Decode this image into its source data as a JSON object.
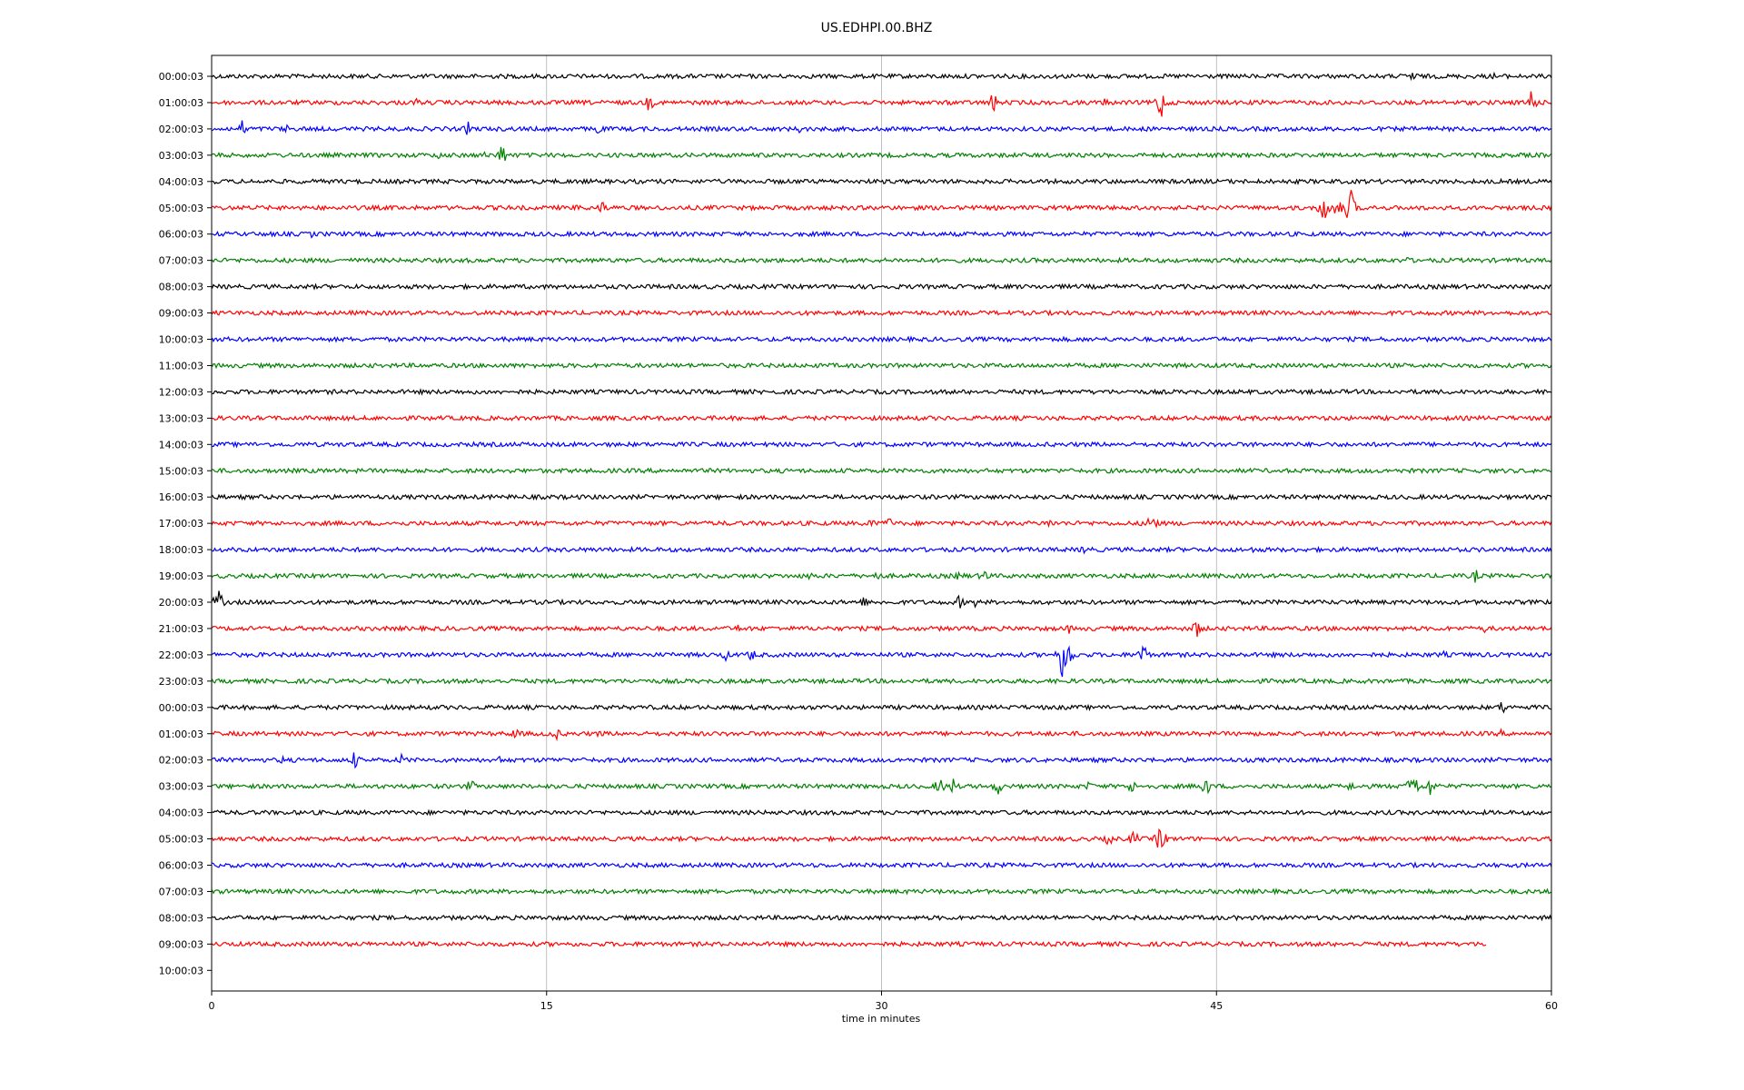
{
  "chart_data": {
    "type": "line",
    "title": "US.EDHPI.00.BHZ",
    "xlabel": "time in minutes",
    "ylabel": "",
    "xlim": [
      0,
      60
    ],
    "xticks": [
      "0",
      "15",
      "30",
      "45",
      "60"
    ],
    "grid": "vertical",
    "colors": [
      "#000000",
      "#ff0000",
      "#0000ff",
      "#008000"
    ],
    "rows": [
      {
        "label": "00:00:03",
        "end_minute": 60,
        "events": [
          {
            "t": 53.8,
            "a": 10
          },
          {
            "t": 57.5,
            "a": 6
          }
        ]
      },
      {
        "label": "01:00:03",
        "end_minute": 60,
        "events": [
          {
            "t": 9.2,
            "a": 6
          },
          {
            "t": 19.6,
            "a": 12
          },
          {
            "t": 33.5,
            "a": 5
          },
          {
            "t": 35.0,
            "a": 14
          },
          {
            "t": 40.0,
            "a": 6
          },
          {
            "t": 42.5,
            "a": 24
          },
          {
            "t": 47.0,
            "a": 6
          },
          {
            "t": 59.1,
            "a": 20
          }
        ]
      },
      {
        "label": "02:00:03",
        "end_minute": 60,
        "events": [
          {
            "t": 1.4,
            "a": 12
          },
          {
            "t": 3.3,
            "a": 7
          },
          {
            "t": 11.5,
            "a": 10
          },
          {
            "t": 17.3,
            "a": 9
          },
          {
            "t": 26.3,
            "a": 6
          }
        ]
      },
      {
        "label": "03:00:03",
        "end_minute": 60,
        "events": [
          {
            "t": 10.2,
            "a": 6
          },
          {
            "t": 12.3,
            "a": 6
          },
          {
            "t": 13.0,
            "a": 16
          }
        ]
      },
      {
        "label": "04:00:03",
        "end_minute": 60,
        "events": []
      },
      {
        "label": "05:00:03",
        "end_minute": 60,
        "events": [
          {
            "t": 16.5,
            "a": 9
          },
          {
            "t": 17.5,
            "a": 10
          },
          {
            "t": 49.8,
            "a": 22
          },
          {
            "t": 50.4,
            "a": 18
          },
          {
            "t": 51.0,
            "a": 28
          }
        ]
      },
      {
        "label": "06:00:03",
        "end_minute": 60,
        "events": [
          {
            "t": 4.5,
            "a": 5
          }
        ]
      },
      {
        "label": "07:00:03",
        "end_minute": 60,
        "events": [
          {
            "t": 53.5,
            "a": 6
          }
        ]
      },
      {
        "label": "08:00:03",
        "end_minute": 60,
        "events": []
      },
      {
        "label": "09:00:03",
        "end_minute": 60,
        "events": []
      },
      {
        "label": "10:00:03",
        "end_minute": 60,
        "events": []
      },
      {
        "label": "11:00:03",
        "end_minute": 60,
        "events": []
      },
      {
        "label": "12:00:03",
        "end_minute": 60,
        "events": []
      },
      {
        "label": "13:00:03",
        "end_minute": 60,
        "events": []
      },
      {
        "label": "14:00:03",
        "end_minute": 60,
        "events": []
      },
      {
        "label": "15:00:03",
        "end_minute": 60,
        "events": []
      },
      {
        "label": "16:00:03",
        "end_minute": 60,
        "events": []
      },
      {
        "label": "17:00:03",
        "end_minute": 60,
        "events": [
          {
            "t": 29.5,
            "a": 8
          },
          {
            "t": 30.3,
            "a": 10
          },
          {
            "t": 37.5,
            "a": 8
          },
          {
            "t": 42.1,
            "a": 18
          }
        ]
      },
      {
        "label": "18:00:03",
        "end_minute": 60,
        "events": [
          {
            "t": 39.1,
            "a": 8
          },
          {
            "t": 46.7,
            "a": 6
          }
        ]
      },
      {
        "label": "19:00:03",
        "end_minute": 60,
        "events": [
          {
            "t": 26.8,
            "a": 6
          },
          {
            "t": 29.8,
            "a": 8
          },
          {
            "t": 33.5,
            "a": 9
          },
          {
            "t": 34.6,
            "a": 12
          },
          {
            "t": 56.6,
            "a": 9
          }
        ]
      },
      {
        "label": "20:00:03",
        "end_minute": 60,
        "events": [
          {
            "t": 0.3,
            "a": 18
          },
          {
            "t": 29.2,
            "a": 8
          },
          {
            "t": 33.5,
            "a": 10
          },
          {
            "t": 34.2,
            "a": 6
          },
          {
            "t": 56.8,
            "a": 5
          }
        ]
      },
      {
        "label": "21:00:03",
        "end_minute": 60,
        "events": [
          {
            "t": 23.6,
            "a": 6
          },
          {
            "t": 38.4,
            "a": 6
          },
          {
            "t": 44.1,
            "a": 14
          },
          {
            "t": 57.0,
            "a": 5
          }
        ]
      },
      {
        "label": "22:00:03",
        "end_minute": 60,
        "events": [
          {
            "t": 23.0,
            "a": 8
          },
          {
            "t": 24.2,
            "a": 10
          },
          {
            "t": 38.1,
            "a": 30
          },
          {
            "t": 38.4,
            "a": 22
          },
          {
            "t": 41.7,
            "a": 18
          },
          {
            "t": 55.2,
            "a": 5
          }
        ]
      },
      {
        "label": "23:00:03",
        "end_minute": 60,
        "events": []
      },
      {
        "label": "00:00:03",
        "end_minute": 60,
        "events": [
          {
            "t": 57.8,
            "a": 10
          }
        ]
      },
      {
        "label": "01:00:03",
        "end_minute": 60,
        "events": [
          {
            "t": 13.6,
            "a": 9
          },
          {
            "t": 15.4,
            "a": 10
          },
          {
            "t": 17.4,
            "a": 6
          },
          {
            "t": 31.4,
            "a": 5
          },
          {
            "t": 57.7,
            "a": 6
          }
        ]
      },
      {
        "label": "02:00:03",
        "end_minute": 60,
        "events": [
          {
            "t": 3.2,
            "a": 6
          },
          {
            "t": 6.4,
            "a": 12
          },
          {
            "t": 8.5,
            "a": 8
          },
          {
            "t": 13.0,
            "a": 8
          }
        ]
      },
      {
        "label": "03:00:03",
        "end_minute": 60,
        "events": [
          {
            "t": 11.6,
            "a": 10
          },
          {
            "t": 32.6,
            "a": 14
          },
          {
            "t": 33.2,
            "a": 12
          },
          {
            "t": 35.2,
            "a": 12
          },
          {
            "t": 39.3,
            "a": 7
          },
          {
            "t": 41.2,
            "a": 10
          },
          {
            "t": 44.5,
            "a": 16
          },
          {
            "t": 51.0,
            "a": 7
          },
          {
            "t": 53.8,
            "a": 26
          },
          {
            "t": 54.6,
            "a": 14
          }
        ]
      },
      {
        "label": "04:00:03",
        "end_minute": 60,
        "events": []
      },
      {
        "label": "05:00:03",
        "end_minute": 60,
        "events": [
          {
            "t": 40.2,
            "a": 10
          },
          {
            "t": 41.3,
            "a": 12
          },
          {
            "t": 42.5,
            "a": 22
          }
        ]
      },
      {
        "label": "06:00:03",
        "end_minute": 60,
        "events": []
      },
      {
        "label": "07:00:03",
        "end_minute": 60,
        "events": []
      },
      {
        "label": "08:00:03",
        "end_minute": 60,
        "events": []
      },
      {
        "label": "09:00:03",
        "end_minute": 57.1,
        "events": []
      },
      {
        "label": "10:00:03",
        "end_minute": 0,
        "events": []
      }
    ]
  }
}
